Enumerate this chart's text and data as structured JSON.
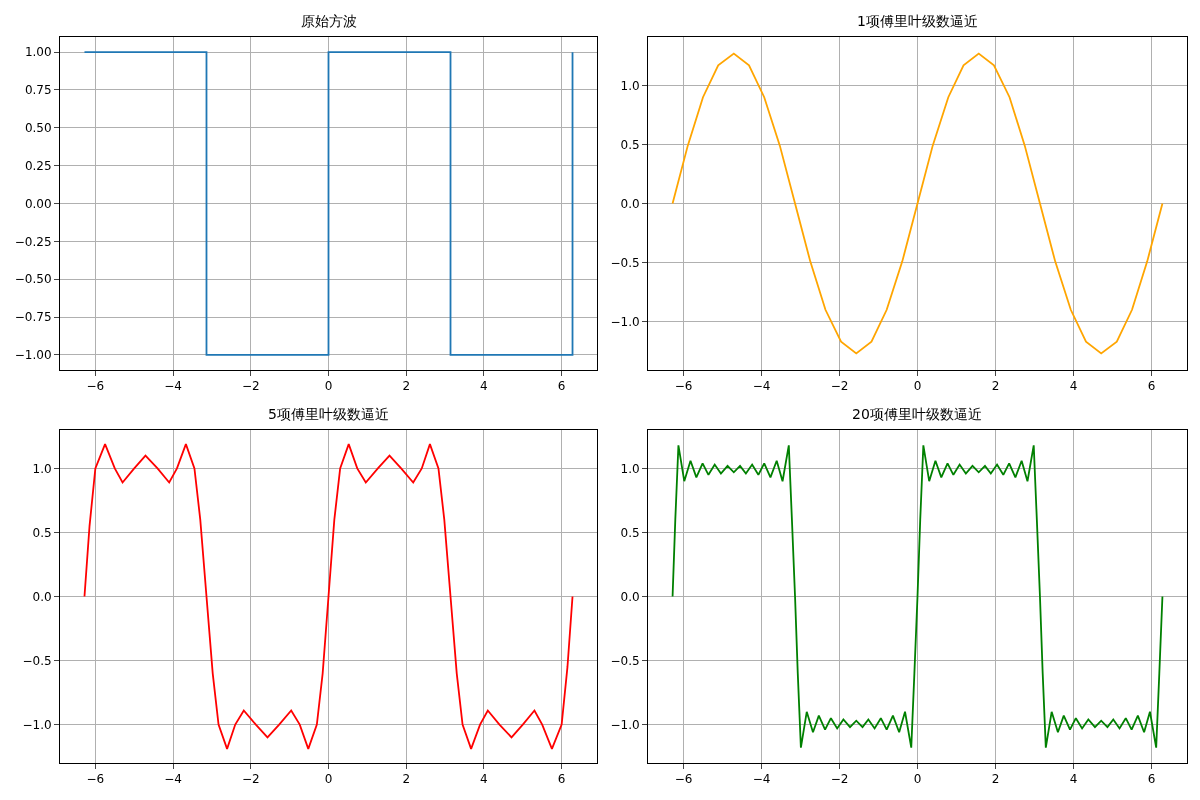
{
  "chart_data": [
    {
      "type": "line",
      "title": "原始方波",
      "xlim": [
        -6.91,
        6.91
      ],
      "xticks": [
        -6,
        -4,
        -2,
        0,
        2,
        4,
        6
      ],
      "ylim": [
        -1.1,
        1.1
      ],
      "yticks": [
        {
          "value": -1,
          "label": "−1.00"
        },
        {
          "value": -0.75,
          "label": "−0.75"
        },
        {
          "value": -0.5,
          "label": "−0.50"
        },
        {
          "value": -0.25,
          "label": "−0.25"
        },
        {
          "value": 0,
          "label": "0.00"
        },
        {
          "value": 0.25,
          "label": "0.25"
        },
        {
          "value": 0.5,
          "label": "0.50"
        },
        {
          "value": 0.75,
          "label": "0.75"
        },
        {
          "value": 1,
          "label": "1.00"
        }
      ],
      "grid": true,
      "series": [
        {
          "color": "#1f77b4",
          "x": [
            -6.28,
            -3.14,
            -3.14,
            0,
            0,
            3.14,
            3.14,
            6.28,
            6.28
          ],
          "values": [
            1,
            1,
            -1,
            -1,
            1,
            1,
            -1,
            -1,
            1
          ]
        }
      ]
    },
    {
      "type": "line",
      "title": "1项傅里叶级数逼近",
      "xlim": [
        -6.91,
        6.91
      ],
      "xticks": [
        -6,
        -4,
        -2,
        0,
        2,
        4,
        6
      ],
      "ylim": [
        -1.41,
        1.41
      ],
      "yticks": [
        {
          "value": -1,
          "label": "−1.0"
        },
        {
          "value": -0.5,
          "label": "−0.5"
        },
        {
          "value": 0,
          "label": "0.0"
        },
        {
          "value": 0.5,
          "label": "0.5"
        },
        {
          "value": 1,
          "label": "1.0"
        }
      ],
      "grid": true,
      "series": [
        {
          "color": "#ffa500",
          "x": [
            -6.28,
            -5.89,
            -5.5,
            -5.11,
            -4.71,
            -4.32,
            -3.93,
            -3.53,
            -3.14,
            -2.75,
            -2.36,
            -1.96,
            -1.57,
            -1.18,
            -0.79,
            -0.39,
            0,
            0.39,
            0.79,
            1.18,
            1.57,
            1.96,
            2.36,
            2.75,
            3.14,
            3.53,
            3.93,
            4.32,
            4.71,
            5.11,
            5.5,
            5.89,
            6.28
          ],
          "values": [
            0,
            0.49,
            0.9,
            1.17,
            1.27,
            1.17,
            0.9,
            0.49,
            0,
            -0.49,
            -0.9,
            -1.17,
            -1.27,
            -1.17,
            -0.9,
            -0.49,
            0,
            0.49,
            0.9,
            1.17,
            1.27,
            1.17,
            0.9,
            0.49,
            0,
            -0.49,
            -0.9,
            -1.17,
            -1.27,
            -1.17,
            -0.9,
            -0.49,
            0
          ]
        }
      ]
    },
    {
      "type": "line",
      "title": "5项傅里叶级数逼近",
      "xlim": [
        -6.91,
        6.91
      ],
      "xticks": [
        -6,
        -4,
        -2,
        0,
        2,
        4,
        6
      ],
      "ylim": [
        -1.3,
        1.3
      ],
      "yticks": [
        {
          "value": -1,
          "label": "−1.0"
        },
        {
          "value": -0.5,
          "label": "−0.5"
        },
        {
          "value": 0,
          "label": "0.0"
        },
        {
          "value": 0.5,
          "label": "0.5"
        },
        {
          "value": 1,
          "label": "1.0"
        }
      ],
      "grid": true,
      "series": [
        {
          "color": "#ff0000",
          "x": [
            -6.28,
            -6.15,
            -6.0,
            -5.75,
            -5.5,
            -5.3,
            -5.0,
            -4.71,
            -4.4,
            -4.1,
            -3.9,
            -3.67,
            -3.45,
            -3.3,
            -3.14,
            -2.98,
            -2.83,
            -2.61,
            -2.4,
            -2.18,
            -1.87,
            -1.57,
            -1.27,
            -0.96,
            -0.74,
            -0.52,
            -0.3,
            -0.15,
            0,
            0.15,
            0.3,
            0.52,
            0.74,
            0.96,
            1.27,
            1.57,
            1.87,
            2.18,
            2.4,
            2.61,
            2.83,
            2.98,
            3.14,
            3.3,
            3.45,
            3.67,
            3.9,
            4.1,
            4.4,
            4.71,
            5.0,
            5.3,
            5.5,
            5.75,
            6.0,
            6.15,
            6.28
          ],
          "values": [
            0,
            0.55,
            1.0,
            1.19,
            1.0,
            0.89,
            1.0,
            1.1,
            1.0,
            0.89,
            1.0,
            1.19,
            1.0,
            0.6,
            0,
            -0.6,
            -1.0,
            -1.19,
            -1.0,
            -0.89,
            -1.0,
            -1.1,
            -1.0,
            -0.89,
            -1.0,
            -1.19,
            -1.0,
            -0.6,
            0,
            0.6,
            1.0,
            1.19,
            1.0,
            0.89,
            1.0,
            1.1,
            1.0,
            0.89,
            1.0,
            1.19,
            1.0,
            0.6,
            0,
            -0.6,
            -1.0,
            -1.19,
            -1.0,
            -0.89,
            -1.0,
            -1.1,
            -1.0,
            -0.89,
            -1.0,
            -1.19,
            -1.0,
            -0.55,
            0
          ]
        }
      ]
    },
    {
      "type": "line",
      "title": "20项傅里叶级数逼近",
      "xlim": [
        -6.91,
        6.91
      ],
      "xticks": [
        -6,
        -4,
        -2,
        0,
        2,
        4,
        6
      ],
      "ylim": [
        -1.3,
        1.3
      ],
      "yticks": [
        {
          "value": -1,
          "label": "−1.0"
        },
        {
          "value": -0.5,
          "label": "−0.5"
        },
        {
          "value": 0,
          "label": "0.0"
        },
        {
          "value": 0.5,
          "label": "0.5"
        },
        {
          "value": 1,
          "label": "1.0"
        }
      ],
      "grid": true,
      "series": [
        {
          "color": "#008000",
          "x": [
            -6.28,
            -6.21,
            -6.13,
            -5.98,
            -5.82,
            -5.67,
            -5.51,
            -5.36,
            -5.2,
            -5.04,
            -4.87,
            -4.71,
            -4.55,
            -4.4,
            -4.24,
            -4.08,
            -3.93,
            -3.77,
            -3.61,
            -3.46,
            -3.3,
            -3.22,
            -3.14,
            -3.07,
            -2.99,
            -2.84,
            -2.68,
            -2.53,
            -2.37,
            -2.22,
            -2.06,
            -1.9,
            -1.73,
            -1.57,
            -1.41,
            -1.26,
            -1.1,
            -0.94,
            -0.79,
            -0.63,
            -0.47,
            -0.32,
            -0.16,
            -0.08,
            0,
            0.07,
            0.15,
            0.3,
            0.46,
            0.61,
            0.77,
            0.92,
            1.08,
            1.24,
            1.41,
            1.57,
            1.73,
            1.88,
            2.04,
            2.2,
            2.35,
            2.51,
            2.67,
            2.82,
            2.98,
            3.06,
            3.14,
            3.21,
            3.29,
            3.44,
            3.6,
            3.75,
            3.91,
            4.06,
            4.22,
            4.38,
            4.55,
            4.71,
            4.87,
            5.02,
            5.18,
            5.34,
            5.49,
            5.65,
            5.81,
            5.96,
            6.12,
            6.2,
            6.28
          ],
          "values": [
            0,
            0.6,
            1.18,
            0.9,
            1.06,
            0.93,
            1.04,
            0.95,
            1.03,
            0.96,
            1.02,
            0.97,
            1.02,
            0.96,
            1.03,
            0.95,
            1.04,
            0.93,
            1.06,
            0.9,
            1.18,
            0.6,
            0,
            -0.6,
            -1.18,
            -0.9,
            -1.06,
            -0.93,
            -1.04,
            -0.95,
            -1.03,
            -0.96,
            -1.02,
            -0.97,
            -1.02,
            -0.96,
            -1.03,
            -0.95,
            -1.04,
            -0.93,
            -1.06,
            -0.9,
            -1.18,
            -0.6,
            0,
            0.6,
            1.18,
            0.9,
            1.06,
            0.93,
            1.04,
            0.95,
            1.03,
            0.96,
            1.02,
            0.97,
            1.02,
            0.96,
            1.03,
            0.95,
            1.04,
            0.93,
            1.06,
            0.9,
            1.18,
            0.6,
            0,
            -0.6,
            -1.18,
            -0.9,
            -1.06,
            -0.93,
            -1.04,
            -0.95,
            -1.03,
            -0.96,
            -1.02,
            -0.97,
            -1.02,
            -0.96,
            -1.03,
            -0.95,
            -1.04,
            -0.93,
            -1.06,
            -0.9,
            -1.18,
            -0.6,
            0
          ]
        }
      ]
    }
  ]
}
